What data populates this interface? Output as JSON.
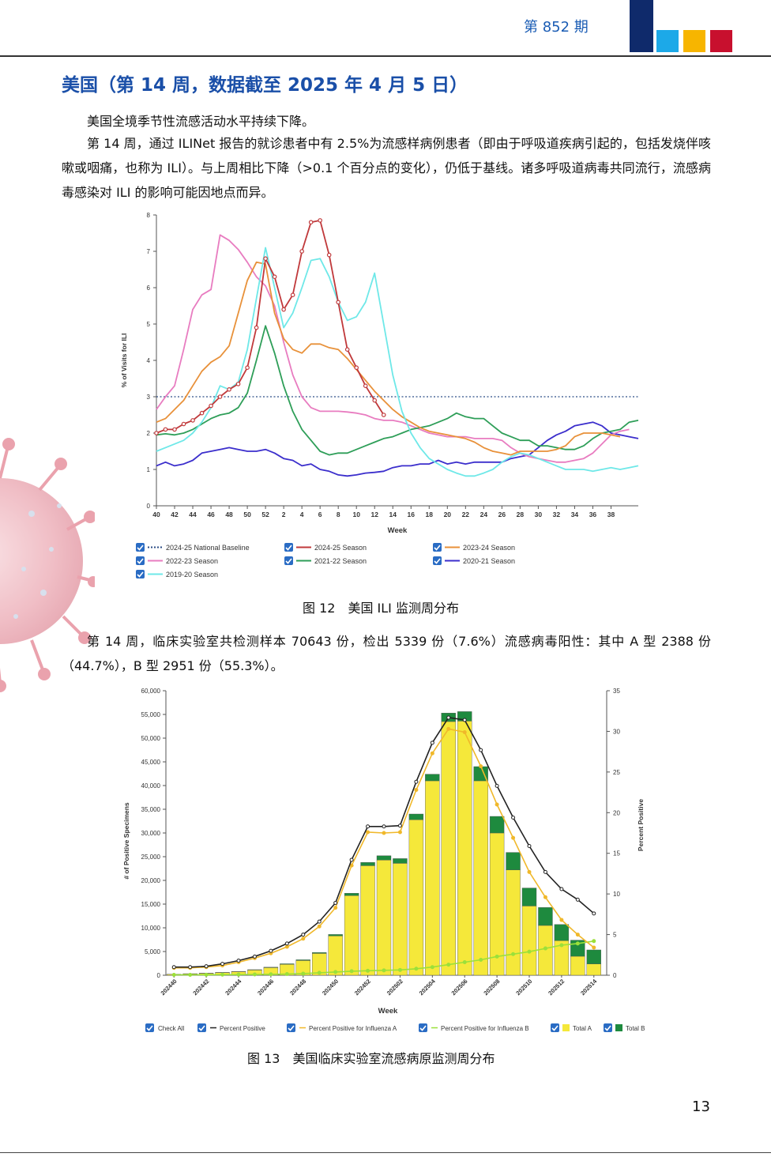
{
  "header": {
    "issue": "第 852 期"
  },
  "heading": "美国（第 14 周，数据截至 2025 年 4 月 5 日）",
  "paragraphs": {
    "p1": "美国全境季节性流感活动水平持续下降。",
    "p2": "第 14 周，通过 ILINet 报告的就诊患者中有 2.5%为流感样病例患者（即由于呼吸道疾病引起的，包括发烧伴咳嗽或咽痛，也称为 ILI）。与上周相比下降（>0.1 个百分点的变化），仍低于基线。诸多呼吸道病毒共同流行，流感病毒感染对 ILI 的影响可能因地点而异。",
    "p3": "第 14 周，临床实验室共检测样本 70643 份，检出 5339 份（7.6%）流感病毒阳性：其中 A 型 2388 份（44.7%），B 型 2951 份（55.3%）。"
  },
  "captions": {
    "fig12": "图 12　美国 ILI 监测周分布",
    "fig13": "图 13　美国临床实验室流感病原监测周分布"
  },
  "page_number": "13",
  "colors": {
    "heading": "#1a4fa8",
    "sq1": "#0f2a6b",
    "sq2": "#1ca9e8",
    "sq3": "#f7b500",
    "sq4": "#c8102e"
  },
  "chart_data": [
    {
      "type": "line",
      "xlabel": "Week",
      "ylabel": "% of Visits for ILI",
      "ylim": [
        0,
        8
      ],
      "yticks": [
        "0",
        "1",
        "2",
        "3",
        "4",
        "5",
        "6",
        "7",
        "8"
      ],
      "xticks": [
        "40",
        "42",
        "44",
        "46",
        "48",
        "50",
        "52",
        "2",
        "4",
        "6",
        "8",
        "10",
        "12",
        "14",
        "16",
        "18",
        "20",
        "22",
        "24",
        "26",
        "28",
        "30",
        "32",
        "34",
        "36",
        "38"
      ],
      "baseline": {
        "name": "2024-25 National Baseline",
        "value": 3.0,
        "color": "#2c4e86"
      },
      "legend": [
        "2024-25 National Baseline",
        "2024-25 Season",
        "2023-24 Season",
        "2022-23 Season",
        "2021-22 Season",
        "2020-21 Season",
        "2019-20 Season"
      ],
      "series": [
        {
          "name": "2024-25 Season",
          "color": "#c0393b",
          "markers": true,
          "values": [
            2.0,
            2.1,
            2.1,
            2.25,
            2.35,
            2.55,
            2.75,
            3.0,
            3.2,
            3.35,
            3.8,
            4.9,
            6.8,
            6.3,
            5.4,
            5.8,
            7.0,
            7.8,
            7.85,
            6.9,
            5.6,
            4.3,
            3.8,
            3.3,
            2.9,
            2.5
          ]
        },
        {
          "name": "2023-24 Season",
          "color": "#e8913a",
          "values": [
            2.3,
            2.4,
            2.65,
            2.9,
            3.3,
            3.7,
            3.95,
            4.1,
            4.4,
            5.3,
            6.2,
            6.7,
            6.65,
            5.3,
            4.6,
            4.3,
            4.2,
            4.45,
            4.45,
            4.35,
            4.3,
            4.05,
            3.75,
            3.45,
            3.15,
            2.9,
            2.65,
            2.45,
            2.3,
            2.15,
            2.05,
            2.0,
            1.95,
            1.9,
            1.85,
            1.75,
            1.6,
            1.5,
            1.45,
            1.4,
            1.5,
            1.5,
            1.5,
            1.5,
            1.55,
            1.65,
            1.9,
            2.0,
            2.0,
            2.0,
            1.95,
            1.9
          ]
        },
        {
          "name": "2022-23 Season",
          "color": "#e87cc0",
          "values": [
            2.65,
            3.0,
            3.3,
            4.3,
            5.4,
            5.8,
            5.95,
            7.45,
            7.3,
            7.05,
            6.7,
            6.3,
            6.05,
            5.5,
            4.5,
            3.6,
            3.0,
            2.7,
            2.6,
            2.6,
            2.6,
            2.58,
            2.55,
            2.5,
            2.4,
            2.35,
            2.35,
            2.3,
            2.2,
            2.1,
            2.0,
            1.95,
            1.9,
            1.9,
            1.9,
            1.85,
            1.85,
            1.85,
            1.8,
            1.6,
            1.45,
            1.35,
            1.3,
            1.25,
            1.2,
            1.2,
            1.25,
            1.3,
            1.45,
            1.7,
            1.95,
            2.05,
            2.1
          ]
        },
        {
          "name": "2021-22 Season",
          "color": "#2e9e58",
          "values": [
            1.95,
            1.98,
            1.95,
            2.0,
            2.1,
            2.25,
            2.4,
            2.5,
            2.55,
            2.7,
            3.1,
            4.0,
            4.95,
            4.2,
            3.3,
            2.6,
            2.1,
            1.8,
            1.5,
            1.4,
            1.45,
            1.45,
            1.55,
            1.65,
            1.75,
            1.85,
            1.9,
            2.0,
            2.1,
            2.15,
            2.2,
            2.3,
            2.4,
            2.55,
            2.45,
            2.4,
            2.4,
            2.2,
            2.0,
            1.9,
            1.8,
            1.8,
            1.65,
            1.65,
            1.6,
            1.55,
            1.55,
            1.65,
            1.85,
            2.0,
            2.05,
            2.1,
            2.3,
            2.35
          ]
        },
        {
          "name": "2020-21 Season",
          "color": "#3b2ecc",
          "values": [
            1.1,
            1.2,
            1.1,
            1.15,
            1.25,
            1.45,
            1.5,
            1.55,
            1.6,
            1.55,
            1.5,
            1.5,
            1.55,
            1.45,
            1.3,
            1.25,
            1.1,
            1.15,
            1.0,
            0.95,
            0.85,
            0.82,
            0.85,
            0.9,
            0.92,
            0.95,
            1.05,
            1.1,
            1.1,
            1.15,
            1.15,
            1.25,
            1.15,
            1.2,
            1.15,
            1.2,
            1.2,
            1.2,
            1.2,
            1.3,
            1.35,
            1.4,
            1.6,
            1.8,
            1.95,
            2.05,
            2.2,
            2.25,
            2.3,
            2.2,
            2.0,
            1.95,
            1.9,
            1.85
          ]
        },
        {
          "name": "2019-20 Season",
          "color": "#6ee8e8",
          "values": [
            1.5,
            1.6,
            1.7,
            1.8,
            2.0,
            2.3,
            2.7,
            3.3,
            3.2,
            3.4,
            4.3,
            5.7,
            7.1,
            6.0,
            4.9,
            5.3,
            6.0,
            6.75,
            6.8,
            6.3,
            5.6,
            5.1,
            5.2,
            5.6,
            6.4,
            5.0,
            3.6,
            2.6,
            2.0,
            1.6,
            1.3,
            1.15,
            1.0,
            0.9,
            0.82,
            0.82,
            0.9,
            1.0,
            1.2,
            1.35,
            1.45,
            1.4,
            1.3,
            1.2,
            1.1,
            1.0,
            1.0,
            1.0,
            0.95,
            1.0,
            1.05,
            1.0,
            1.05,
            1.1
          ]
        }
      ]
    },
    {
      "type": "bar",
      "xlabel": "Week",
      "ylabel": "# of Positive Specimens",
      "ylabel_right": "Percent Positive",
      "ylim": [
        0,
        60000
      ],
      "ylim_right": [
        0,
        35
      ],
      "yticks": [
        "0",
        "5,000",
        "10,000",
        "15,000",
        "20,000",
        "25,000",
        "30,000",
        "35,000",
        "40,000",
        "45,000",
        "50,000",
        "55,000",
        "60,000"
      ],
      "yticks_right": [
        "0",
        "5",
        "10",
        "15",
        "20",
        "25",
        "30",
        "35"
      ],
      "categories": [
        "202440",
        "202441",
        "202442",
        "202443",
        "202444",
        "202445",
        "202446",
        "202447",
        "202448",
        "202449",
        "202450",
        "202451",
        "202452",
        "202501",
        "202502",
        "202503",
        "202504",
        "202505",
        "202506",
        "202507",
        "202508",
        "202509",
        "202510",
        "202511",
        "202512",
        "202513",
        "202514"
      ],
      "tick_labels": [
        "202440",
        "202442",
        "202444",
        "202446",
        "202448",
        "202450",
        "202452",
        "202502",
        "202504",
        "202506",
        "202508",
        "202510",
        "202512",
        "202514"
      ],
      "legend": [
        "Check All",
        "Percent Positive",
        "Percent Positive for Influenza A",
        "Percent Positive for Influenza B",
        "Total A",
        "Total B"
      ],
      "series": [
        {
          "name": "Total A",
          "color": "#f5e83a",
          "values": [
            200,
            300,
            400,
            550,
            750,
            1100,
            1600,
            2300,
            3100,
            4600,
            8300,
            16800,
            23100,
            24300,
            23600,
            32800,
            41000,
            53500,
            53600,
            41000,
            30000,
            22200,
            14600,
            10500,
            7300,
            4000,
            2388
          ]
        },
        {
          "name": "Total B",
          "color": "#1e8a3e",
          "values": [
            20,
            30,
            40,
            50,
            60,
            80,
            100,
            120,
            160,
            200,
            300,
            500,
            700,
            900,
            1000,
            1200,
            1400,
            1800,
            2000,
            3000,
            3500,
            3700,
            3800,
            3800,
            3400,
            3400,
            2951
          ]
        },
        {
          "name": "Percent Positive",
          "color": "#222222",
          "values": [
            1.0,
            1.0,
            1.1,
            1.4,
            1.8,
            2.3,
            3.0,
            3.9,
            5.0,
            6.6,
            8.9,
            14.2,
            18.3,
            18.3,
            18.4,
            23.8,
            28.6,
            31.7,
            31.4,
            27.7,
            23.3,
            19.4,
            15.9,
            12.7,
            10.6,
            9.3,
            7.6
          ]
        },
        {
          "name": "Percent Positive for Influenza A",
          "color": "#f0b82a",
          "values": [
            0.9,
            0.9,
            1.0,
            1.2,
            1.6,
            2.1,
            2.7,
            3.5,
            4.5,
            6.0,
            8.3,
            13.5,
            17.6,
            17.5,
            17.6,
            22.8,
            27.3,
            30.3,
            29.9,
            25.7,
            21.0,
            16.9,
            12.7,
            9.6,
            6.8,
            5.0,
            3.4
          ]
        },
        {
          "name": "Percent Positive for Influenza B",
          "color": "#9be03a",
          "values": [
            0.05,
            0.05,
            0.06,
            0.07,
            0.08,
            0.1,
            0.12,
            0.15,
            0.2,
            0.3,
            0.4,
            0.5,
            0.55,
            0.6,
            0.65,
            0.8,
            1.0,
            1.3,
            1.6,
            1.9,
            2.3,
            2.6,
            2.9,
            3.3,
            3.7,
            3.9,
            4.2
          ]
        }
      ]
    }
  ]
}
